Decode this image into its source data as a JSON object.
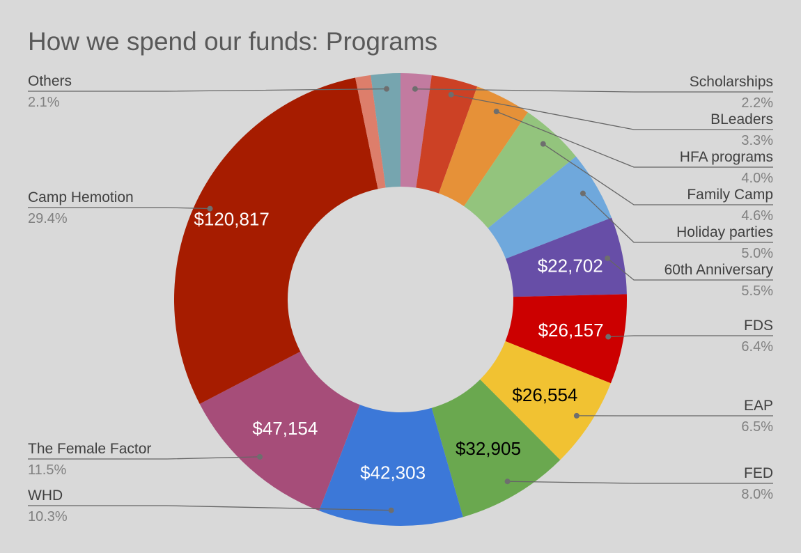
{
  "chart_data": {
    "type": "pie",
    "donut": true,
    "title": "How we spend our funds: Programs",
    "slices": [
      {
        "label": "Scholarships",
        "percent": "2.2%",
        "share": 2.2,
        "color": "#c27ba0"
      },
      {
        "label": "BLeaders",
        "percent": "3.3%",
        "share": 3.3,
        "color": "#cc4125"
      },
      {
        "label": "HFA programs",
        "percent": "4.0%",
        "share": 4.0,
        "color": "#e69138"
      },
      {
        "label": "Family Camp",
        "percent": "4.6%",
        "share": 4.6,
        "color": "#93c47d"
      },
      {
        "label": "Holiday parties",
        "percent": "5.0%",
        "share": 5.0,
        "color": "#6fa8dc"
      },
      {
        "label": "60th Anniversary",
        "percent": "5.5%",
        "share": 5.5,
        "color": "#674ea7",
        "value_label": "$22,702",
        "value_text_color": "#ffffff"
      },
      {
        "label": "FDS",
        "percent": "6.4%",
        "share": 6.4,
        "color": "#cc0000",
        "value_label": "$26,157",
        "value_text_color": "#ffffff"
      },
      {
        "label": "EAP",
        "percent": "6.5%",
        "share": 6.5,
        "color": "#f1c232",
        "value_label": "$26,554",
        "value_text_color": "#000000"
      },
      {
        "label": "FED",
        "percent": "8.0%",
        "share": 8.0,
        "color": "#6aa84f",
        "value_label": "$32,905",
        "value_text_color": "#000000"
      },
      {
        "label": "WHD",
        "percent": "10.3%",
        "share": 10.3,
        "color": "#3c78d8",
        "value_label": "$42,303",
        "value_text_color": "#ffffff"
      },
      {
        "label": "The Female Factor",
        "percent": "11.5%",
        "share": 11.5,
        "color": "#a64d79",
        "value_label": "$47,154",
        "value_text_color": "#ffffff"
      },
      {
        "label": "Camp Hemotion",
        "percent": "29.4%",
        "share": 29.4,
        "color": "#a61c00",
        "value_label": "$120,817",
        "value_text_color": "#ffffff"
      },
      {
        "label": "",
        "percent": "",
        "share": 1.1,
        "color": "#dd7e6b"
      },
      {
        "label": "Others",
        "percent": "2.1%",
        "share": 2.1,
        "color": "#76a5af"
      }
    ],
    "legend": "callout labels on both sides",
    "background": "#d9d9d9"
  }
}
